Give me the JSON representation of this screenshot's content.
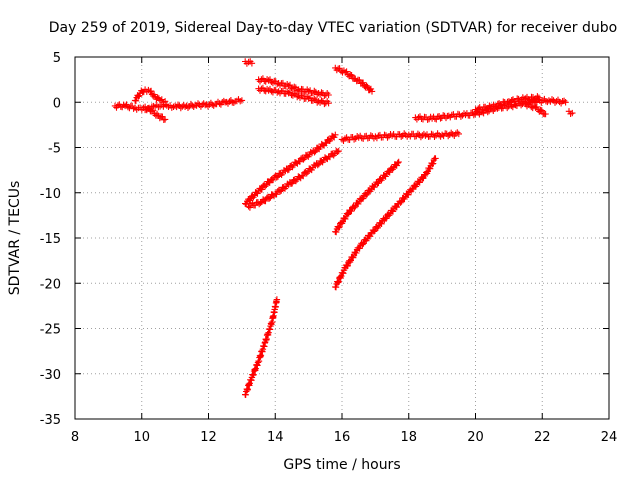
{
  "chart_data": {
    "type": "scatter",
    "title": "Day 259 of 2019, Sidereal Day-to-day VTEC variation (SDTVAR) for receiver dubo",
    "xlabel": "GPS time / hours",
    "ylabel": "SDTVAR / TECUs",
    "xlim": [
      8,
      24
    ],
    "ylim": [
      -35,
      5
    ],
    "xticks": [
      8,
      10,
      12,
      14,
      16,
      18,
      20,
      22,
      24
    ],
    "yticks": [
      5,
      0,
      -5,
      -10,
      -15,
      -20,
      -25,
      -30,
      -35
    ],
    "grid": true,
    "marker": "+",
    "color": "#ff0000",
    "tracks": [
      {
        "x": [
          9.2,
          9.5,
          9.8,
          10.0,
          10.2,
          10.4,
          10.6,
          10.8,
          11.0,
          11.3,
          11.6,
          11.9,
          12.2,
          12.5,
          12.8,
          13.0
        ],
        "y": [
          -0.4,
          -0.4,
          -0.6,
          -0.8,
          -0.7,
          -0.5,
          -0.3,
          -0.5,
          -0.4,
          -0.5,
          -0.3,
          -0.3,
          -0.2,
          0.0,
          0.1,
          0.2
        ]
      },
      {
        "x": [
          9.8,
          9.95,
          10.1,
          10.25,
          10.4,
          10.55,
          10.7
        ],
        "y": [
          0.2,
          1.0,
          1.4,
          1.2,
          0.6,
          0.2,
          0.1
        ]
      },
      {
        "x": [
          10.1,
          10.3,
          10.5,
          10.7
        ],
        "y": [
          -0.5,
          -1.0,
          -1.5,
          -1.9
        ]
      },
      {
        "x": [
          13.1,
          13.3
        ],
        "y": [
          4.5,
          4.3
        ]
      },
      {
        "x": [
          13.5,
          13.8,
          14.1,
          14.4,
          14.7,
          15.0,
          15.3,
          15.6
        ],
        "y": [
          2.5,
          2.4,
          2.1,
          1.8,
          1.4,
          1.2,
          1.0,
          0.8
        ]
      },
      {
        "x": [
          13.5,
          13.8,
          14.1,
          14.4,
          14.7,
          15.0,
          15.3,
          15.6
        ],
        "y": [
          1.5,
          1.3,
          1.2,
          1.0,
          0.7,
          0.4,
          0.1,
          -0.1
        ]
      },
      {
        "x": [
          15.8,
          16.1,
          16.4,
          16.6,
          16.9
        ],
        "y": [
          3.8,
          3.3,
          2.6,
          2.1,
          1.2
        ]
      },
      {
        "x": [
          13.1,
          13.5,
          13.9,
          14.3,
          14.7,
          15.1,
          15.5,
          15.8
        ],
        "y": [
          -11.2,
          -9.8,
          -8.5,
          -7.6,
          -6.5,
          -5.6,
          -4.5,
          -3.6
        ]
      },
      {
        "x": [
          13.2,
          13.6,
          14.0,
          14.4,
          14.8,
          15.2,
          15.6,
          15.9
        ],
        "y": [
          -11.5,
          -11.0,
          -10.1,
          -9.1,
          -8.1,
          -7.0,
          -6.0,
          -5.4
        ]
      },
      {
        "x": [
          16.0,
          16.5,
          17.0,
          17.5,
          18.0,
          18.5,
          19.0,
          19.5
        ],
        "y": [
          -4.1,
          -3.9,
          -3.8,
          -3.7,
          -3.6,
          -3.7,
          -3.6,
          -3.5
        ]
      },
      {
        "x": [
          18.2,
          18.7,
          19.2,
          19.7,
          20.2,
          20.7,
          21.2,
          21.7,
          22.2,
          22.7
        ],
        "y": [
          -1.7,
          -1.8,
          -1.5,
          -1.4,
          -1.1,
          -0.6,
          -0.3,
          0.1,
          0.2,
          0.0
        ]
      },
      {
        "x": [
          20.0,
          20.5,
          21.0,
          21.5,
          21.9
        ],
        "y": [
          -0.8,
          -0.5,
          0.1,
          0.4,
          0.5
        ]
      },
      {
        "x": [
          21.5,
          21.8,
          22.1
        ],
        "y": [
          -0.2,
          -0.6,
          -1.3
        ]
      },
      {
        "x": [
          22.8,
          22.9
        ],
        "y": [
          -1.0,
          -1.2
        ]
      },
      {
        "x": [
          15.8,
          16.2,
          16.6,
          17.0,
          17.4,
          17.7
        ],
        "y": [
          -14.3,
          -12.2,
          -10.6,
          -9.1,
          -7.7,
          -6.6
        ]
      },
      {
        "x": [
          15.8,
          16.1,
          16.5,
          16.9,
          17.3,
          17.7,
          18.1,
          18.5,
          18.8
        ],
        "y": [
          -20.4,
          -18.3,
          -16.1,
          -14.4,
          -12.8,
          -11.2,
          -9.6,
          -8.0,
          -6.2
        ]
      },
      {
        "x": [
          13.1,
          13.3,
          13.5,
          13.7,
          13.9,
          14.05
        ],
        "y": [
          -32.3,
          -30.4,
          -28.6,
          -26.5,
          -24.3,
          -21.8
        ]
      }
    ]
  }
}
